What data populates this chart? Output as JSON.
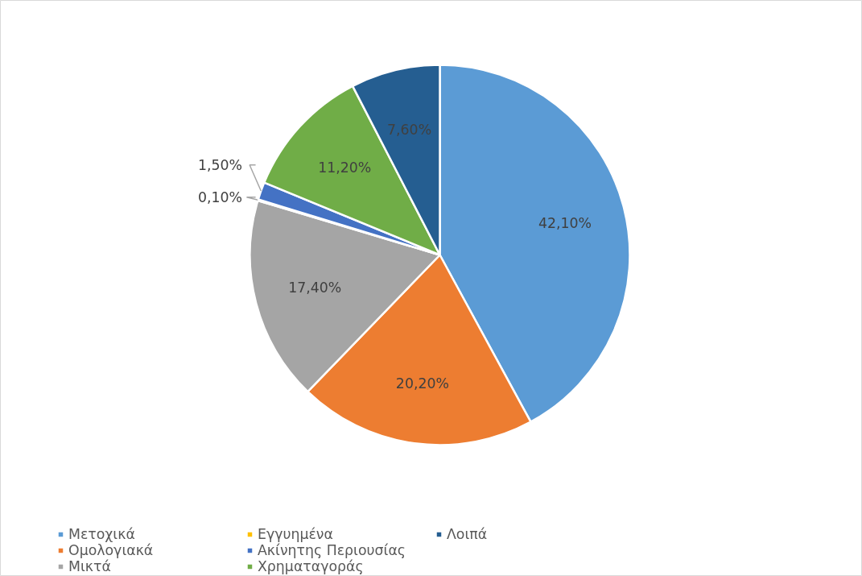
{
  "chart_data": {
    "type": "pie",
    "categories": [
      "Μετοχικά",
      "Ομολογιακά",
      "Μικτά",
      "Εγγυημένα",
      "Ακίνητης Περιουσίας",
      "Χρηματαγοράς",
      "Λοιπά"
    ],
    "values": [
      42.1,
      20.2,
      17.4,
      0.1,
      1.5,
      11.2,
      7.6
    ],
    "colors": [
      "#5b9bd5",
      "#ed7d31",
      "#a5a5a5",
      "#ffc000",
      "#4472c4",
      "#70ad47",
      "#255e91"
    ],
    "value_labels": [
      "42,10%",
      "20,20%",
      "17,40%",
      "0,10%",
      "1,50%",
      "11,20%",
      "7,60%"
    ],
    "legend": "bottom"
  }
}
